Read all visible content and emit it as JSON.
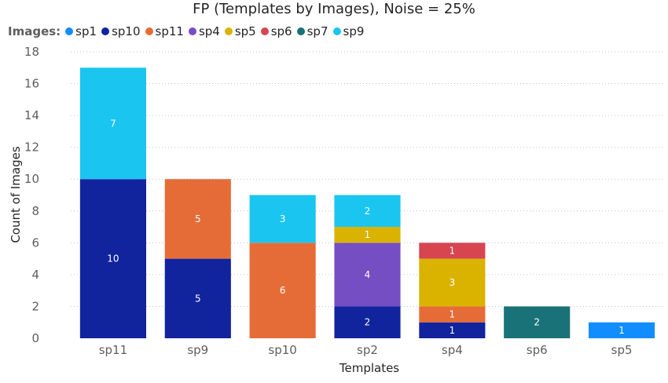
{
  "chart_data": {
    "type": "bar",
    "title": "FP (Templates by Images), Noise = 25%",
    "xlabel": "Templates",
    "ylabel": "Count of Images",
    "legend_title": "Images:",
    "legend_position": "top-left",
    "ylim": [
      0,
      18
    ],
    "y_ticks": [
      0,
      2,
      4,
      6,
      8,
      10,
      12,
      14,
      16,
      18
    ],
    "grid": true,
    "categories": [
      "sp11",
      "sp9",
      "sp10",
      "sp2",
      "sp4",
      "sp6",
      "sp5"
    ],
    "series": [
      {
        "name": "sp1",
        "color": "#118DFF",
        "values": [
          0,
          0,
          0,
          0,
          0,
          0,
          1
        ]
      },
      {
        "name": "sp10",
        "color": "#12239E",
        "values": [
          10,
          5,
          0,
          2,
          1,
          0,
          0
        ]
      },
      {
        "name": "sp11",
        "color": "#E66C37",
        "values": [
          0,
          5,
          6,
          0,
          1,
          0,
          0
        ]
      },
      {
        "name": "sp4",
        "color": "#744EC2",
        "values": [
          0,
          0,
          0,
          4,
          0,
          0,
          0
        ]
      },
      {
        "name": "sp5",
        "color": "#D9B300",
        "values": [
          0,
          0,
          0,
          1,
          3,
          0,
          0
        ]
      },
      {
        "name": "sp6",
        "color": "#D64550",
        "values": [
          0,
          0,
          0,
          0,
          1,
          0,
          0
        ]
      },
      {
        "name": "sp7",
        "color": "#197278",
        "values": [
          0,
          0,
          0,
          0,
          0,
          2,
          0
        ]
      },
      {
        "name": "sp9",
        "color": "#1AC5F0",
        "values": [
          7,
          0,
          3,
          2,
          0,
          0,
          0
        ]
      }
    ]
  }
}
